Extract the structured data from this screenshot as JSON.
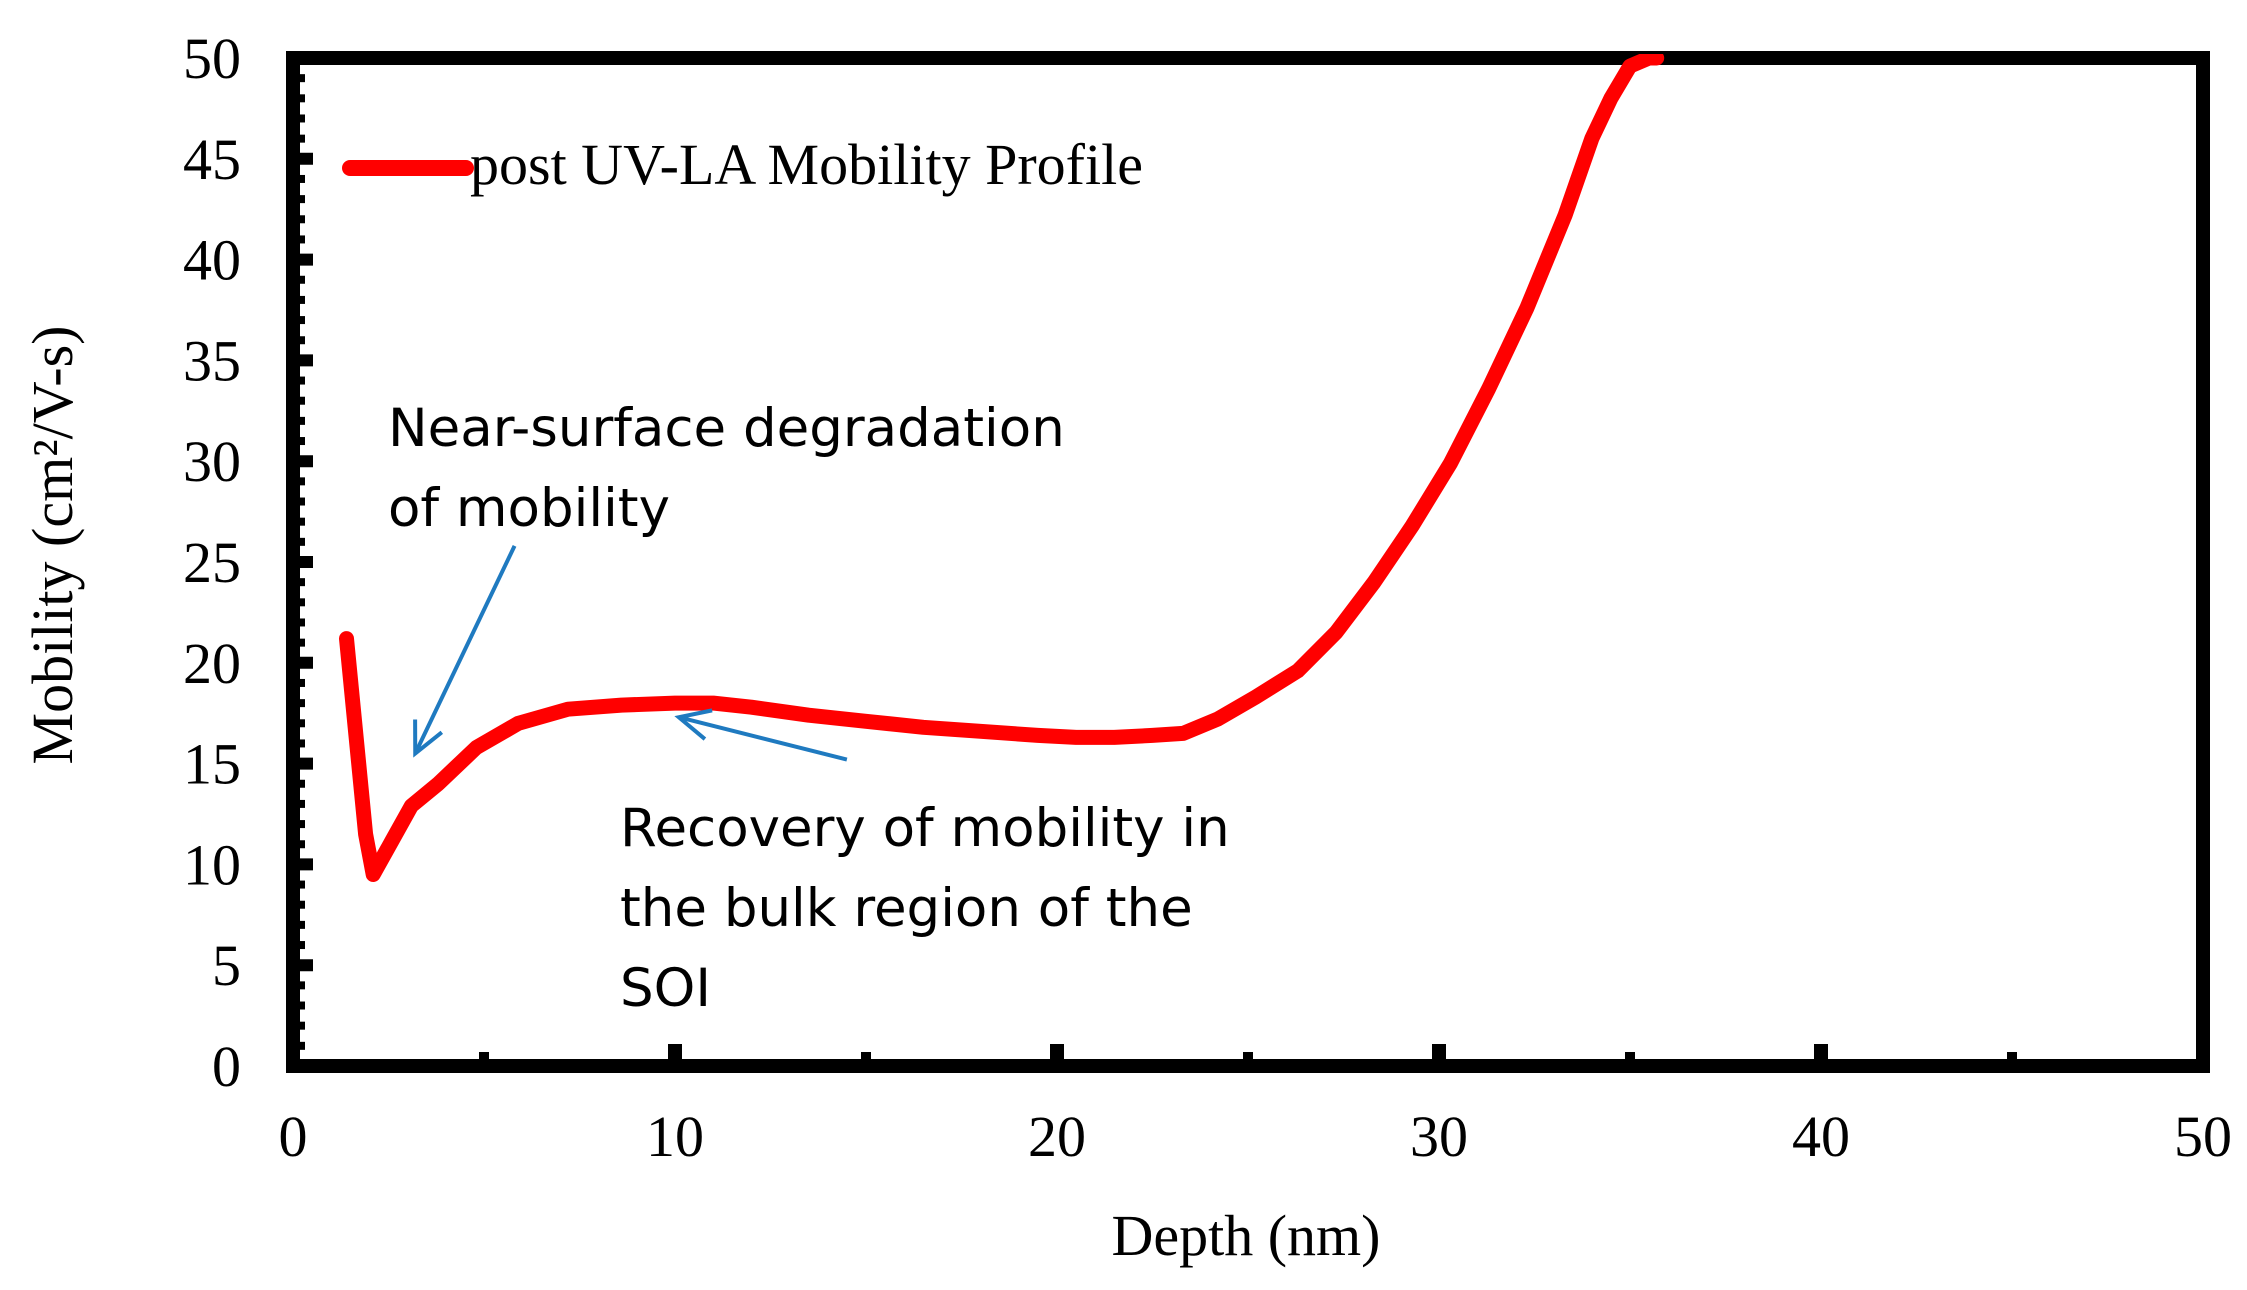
{
  "chart_data": {
    "type": "line",
    "xlabel": "Depth (nm)",
    "ylabel": "Mobility (cm²/V-s)",
    "xlim": [
      0,
      50
    ],
    "ylim": [
      0,
      50
    ],
    "x_ticks": [
      0,
      10,
      20,
      30,
      40,
      50
    ],
    "y_ticks": [
      0,
      5,
      10,
      15,
      20,
      25,
      30,
      35,
      40,
      45,
      50
    ],
    "x_tick_labels": [
      "0",
      "10",
      "20",
      "30",
      "40",
      "50"
    ],
    "y_tick_labels": [
      "0",
      "5",
      "10",
      "15",
      "20",
      "25",
      "30",
      "35",
      "40",
      "45",
      "50"
    ],
    "grid": false,
    "legend_position": "top-left",
    "series": [
      {
        "name": "post UV-LA Mobility Profile",
        "color": "#ff0000",
        "x": [
          1.4,
          1.9,
          2.1,
          2.6,
          3.1,
          3.8,
          4.8,
          5.9,
          7.2,
          8.6,
          10.0,
          11.0,
          12.0,
          13.5,
          15.0,
          16.5,
          18.0,
          19.5,
          20.5,
          21.5,
          22.5,
          23.3,
          24.2,
          25.2,
          26.3,
          27.3,
          28.3,
          29.3,
          30.3,
          31.3,
          32.3,
          33.3,
          34.0,
          34.5,
          35.0,
          35.5,
          35.7
        ],
        "y": [
          21.2,
          11.5,
          9.5,
          11.2,
          12.9,
          14.0,
          15.8,
          17.0,
          17.7,
          17.9,
          18.0,
          18.0,
          17.8,
          17.4,
          17.1,
          16.8,
          16.6,
          16.4,
          16.3,
          16.3,
          16.4,
          16.5,
          17.2,
          18.3,
          19.6,
          21.5,
          24.0,
          26.8,
          29.9,
          33.6,
          37.6,
          42.2,
          46.0,
          48.0,
          49.6,
          50.0,
          50.0
        ]
      }
    ],
    "annotations": [
      {
        "id": "near-surface",
        "lines": [
          "Near-surface degradation",
          "of mobility"
        ],
        "arrow_tail": [
          5.8,
          25.8
        ],
        "arrow_head": [
          3.2,
          15.5
        ]
      },
      {
        "id": "recovery",
        "lines": [
          "Recovery of mobility in",
          "the bulk region of the",
          "SOI"
        ],
        "arrow_tail": [
          14.5,
          15.2
        ],
        "arrow_head": [
          10.1,
          17.3
        ]
      }
    ],
    "annotation_color": "#1f7ac0",
    "axis_color": "#000000"
  }
}
